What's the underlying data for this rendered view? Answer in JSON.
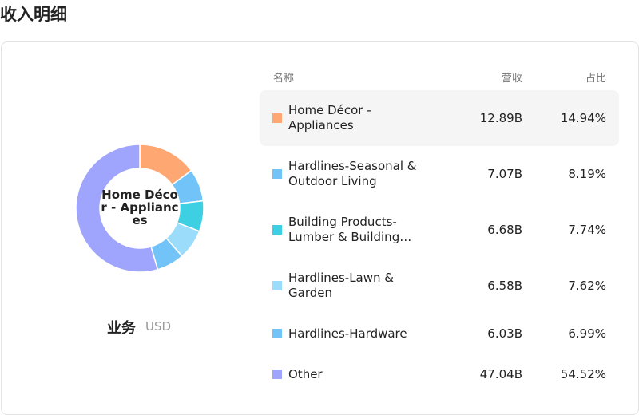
{
  "title": "收入明细",
  "chart_data": {
    "type": "donut",
    "categories": [
      "Home Décor - Appliances",
      "Hardlines-Seasonal & Outdoor Living",
      "Building Products-Lumber & Building…",
      "Hardlines-Lawn & Garden",
      "Hardlines-Hardware",
      "Other"
    ],
    "values": [
      14.94,
      8.19,
      7.74,
      7.62,
      6.99,
      54.52
    ],
    "value_labels": [
      "14.94%",
      "8.19%",
      "7.74%",
      "7.62%",
      "6.99%",
      "54.52%"
    ],
    "colors": [
      "#ffa773",
      "#72c3f7",
      "#3dd0e3",
      "#9bdcfb",
      "#72c3f7",
      "#9fa4fd"
    ],
    "footer_label": "业务",
    "unit": "USD"
  },
  "table": {
    "headers": [
      "名称",
      "营收",
      "占比"
    ],
    "revenue": [
      "12.89B",
      "7.07B",
      "6.68B",
      "6.58B",
      "6.03B",
      "47.04B"
    ]
  }
}
